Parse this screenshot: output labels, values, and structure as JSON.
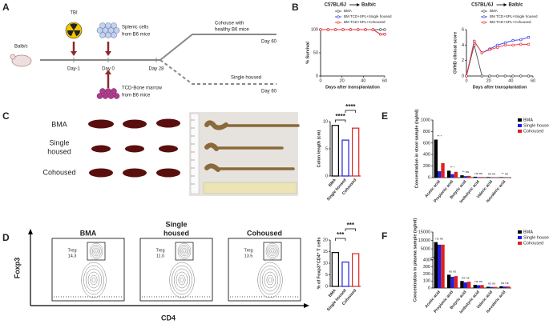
{
  "panels": {
    "labels": [
      "A",
      "B",
      "C",
      "D",
      "E",
      "F"
    ]
  },
  "schema": {
    "strain": "Balb/c",
    "tbi": "TBI",
    "splenic": [
      "Splenic cells",
      "from B6 mice"
    ],
    "marrow": [
      "TCD-Bone marrow",
      "from B6 mice"
    ],
    "days": [
      "Day-1",
      "Day 0",
      "Day 28"
    ],
    "cohouse": [
      "Cohouse with",
      "healthy B6 mice"
    ],
    "single": "Single housed",
    "end": [
      "Day 60",
      "Day 60"
    ]
  },
  "photos": {
    "rows": [
      [
        "BMA"
      ],
      [
        "Single",
        "housed"
      ],
      [
        "Cohoused"
      ]
    ]
  },
  "flow": {
    "titles": [
      [
        "BMA"
      ],
      [
        "Single",
        "housed"
      ],
      [
        "Cohoused"
      ]
    ],
    "gate": "Treg",
    "gate_values": [
      "14.3",
      "11.0",
      "13.5"
    ],
    "x_label": "CD4",
    "y_label": "Foxp3"
  },
  "chart_data": [
    {
      "type": "line",
      "title": [
        "C57BL/6J",
        "Balb/c"
      ],
      "y_label": "% Survival",
      "x_label": "Days after transplantation",
      "x": [
        0,
        7,
        14,
        21,
        28,
        35,
        42,
        49,
        56,
        60
      ],
      "xlim": [
        0,
        60
      ],
      "xticks": [
        0,
        20,
        40,
        60
      ],
      "ylim": [
        0,
        100
      ],
      "yticks": [
        0,
        50,
        100
      ],
      "series": [
        {
          "name": "BMA",
          "color": "#555555",
          "values": [
            100,
            100,
            100,
            100,
            100,
            100,
            100,
            100,
            100,
            100
          ]
        },
        {
          "name": "BM TCD+SPL+Single housed",
          "color": "#3a3af0",
          "values": [
            100,
            100,
            100,
            100,
            100,
            100,
            100,
            100,
            90,
            90
          ]
        },
        {
          "name": "BM TCD+SPL+Cohoused",
          "color": "#f03030",
          "values": [
            100,
            100,
            100,
            100,
            100,
            100,
            100,
            100,
            90,
            90
          ]
        }
      ]
    },
    {
      "type": "line",
      "title": [
        "C57BL/6J",
        "Balb/c"
      ],
      "y_label": "GVHD clinical score",
      "x_label": "Days after transplantation",
      "x": [
        0,
        7,
        14,
        21,
        28,
        35,
        42,
        49,
        56
      ],
      "xlim": [
        0,
        60
      ],
      "xticks": [
        0,
        20,
        40,
        60
      ],
      "ylim": [
        0,
        6
      ],
      "yticks": [
        0,
        2,
        4,
        6
      ],
      "series": [
        {
          "name": "BMA",
          "color": "#555555",
          "values": [
            0,
            4,
            0,
            0,
            0,
            0,
            0,
            0,
            0
          ]
        },
        {
          "name": "BM TCD+SPL+Single housed",
          "color": "#3a3af0",
          "values": [
            0,
            4.5,
            3,
            3.5,
            4,
            4.3,
            4.6,
            4.7,
            5
          ]
        },
        {
          "name": "BM TCD+SPL+Cohoused",
          "color": "#f03030",
          "values": [
            0,
            4.5,
            3,
            3.4,
            3.7,
            4,
            4,
            4.1,
            4.1
          ]
        }
      ]
    },
    {
      "type": "bar",
      "y_label": "Colon length (cm)",
      "categories": [
        "BMA",
        "Single housed",
        "Cohoused"
      ],
      "values": [
        9.3,
        6.6,
        8.8
      ],
      "colors": [
        "#000000",
        "#1f1fe0",
        "#e02020"
      ],
      "ylim": [
        0,
        10
      ],
      "yticks": [
        0,
        5,
        10
      ],
      "significance": [
        "****",
        "****"
      ]
    },
    {
      "type": "bar",
      "y_label": "Concentration in stool sample (ng/ml)",
      "categories": [
        "Acetic acid",
        "Propionic acid",
        "Butyric acid",
        "Isobutyric acid",
        "Valeric acid",
        "Isovaleric acid"
      ],
      "series": [
        {
          "name": "BMA",
          "color": "#000000",
          "values": [
            660,
            120,
            40,
            15,
            10,
            8
          ]
        },
        {
          "name": "Single housed",
          "color": "#1f1fe0",
          "values": [
            110,
            60,
            25,
            8,
            5,
            4
          ]
        },
        {
          "name": "Cohoused",
          "color": "#e02020",
          "values": [
            250,
            100,
            30,
            10,
            7,
            5
          ]
        }
      ],
      "ylim": [
        0,
        1000
      ],
      "yticks": [
        0,
        200,
        400,
        600,
        800,
        1000
      ],
      "annotations": [
        "** *",
        "** *",
        "** ns",
        "ns ns",
        "ns ns",
        "** ns"
      ]
    },
    {
      "type": "bar",
      "y_label": "% of Foxp3⁺CD4⁺ T cells",
      "categories": [
        "BMA",
        "Single housed",
        "Cohoused"
      ],
      "values": [
        14.6,
        10.5,
        14.1
      ],
      "colors": [
        "#000000",
        "#1f1fe0",
        "#e02020"
      ],
      "ylim": [
        0,
        20
      ],
      "yticks": [
        0,
        5,
        10,
        15,
        20
      ],
      "significance": [
        "***",
        "***"
      ]
    },
    {
      "type": "bar",
      "y_label": "Concentration in plasma sample (ng/ml)",
      "categories": [
        "Acetic acid",
        "Propionic acid",
        "Butyric acid",
        "Isobutyric acid",
        "Valeric acid",
        "Isovaleric acid"
      ],
      "series": [
        {
          "name": "BMA",
          "color": "#000000",
          "values": [
            9000,
            190,
            100,
            45,
            18,
            25
          ]
        },
        {
          "name": "Single housed",
          "color": "#1f1fe0",
          "values": [
            7500,
            160,
            80,
            40,
            15,
            20
          ]
        },
        {
          "name": "Cohoused",
          "color": "#e02020",
          "values": [
            7500,
            170,
            90,
            42,
            16,
            22
          ]
        }
      ],
      "ylim": [
        0,
        15000
      ],
      "ybreak": 400,
      "yticks": [
        0,
        100,
        200,
        300,
        400,
        5000,
        10000,
        15000
      ],
      "annotations": [
        "ns ns",
        "ns ns",
        "ns ns",
        "ns ns",
        "ns ns",
        "ns ns"
      ]
    }
  ]
}
